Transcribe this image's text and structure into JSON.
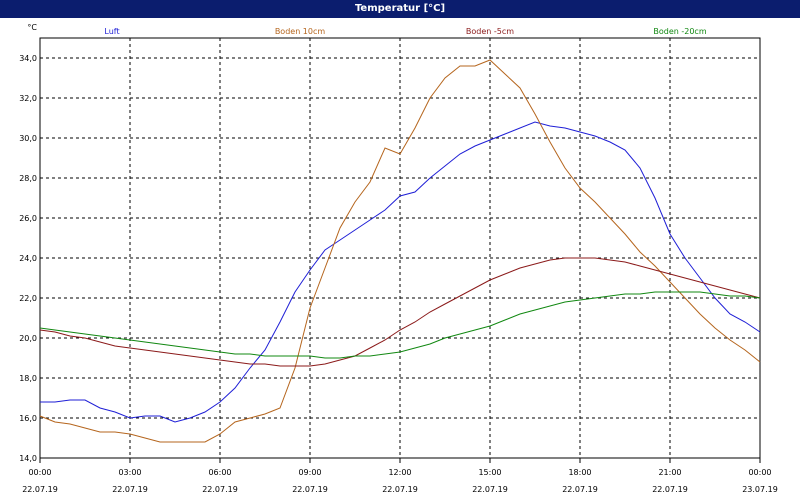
{
  "title": "Temperatur [°C]",
  "colors": {
    "title_bar": "#0b1d6e",
    "luft": "#1f1fd6",
    "boden_10": "#b5651d",
    "boden_minus5": "#8b1a1a",
    "boden_minus20": "#118811"
  },
  "chart_data": {
    "type": "line",
    "title": "Temperatur [°C]",
    "y_unit": "°C",
    "ylim": [
      14,
      35
    ],
    "y_ticks": [
      "14,0",
      "16,0",
      "18,0",
      "20,0",
      "22,0",
      "24,0",
      "26,0",
      "28,0",
      "30,0",
      "32,0",
      "34,0"
    ],
    "x_ticks": [
      {
        "time": "00:00",
        "date": "22.07.19"
      },
      {
        "time": "03:00",
        "date": "22.07.19"
      },
      {
        "time": "06:00",
        "date": "22.07.19"
      },
      {
        "time": "09:00",
        "date": "22.07.19"
      },
      {
        "time": "12:00",
        "date": "22.07.19"
      },
      {
        "time": "15:00",
        "date": "22.07.19"
      },
      {
        "time": "18:00",
        "date": "22.07.19"
      },
      {
        "time": "21:00",
        "date": "22.07.19"
      },
      {
        "time": "00:00",
        "date": "23.07.19"
      }
    ],
    "grid": true,
    "legend_placement": "top",
    "x_hours": [
      0,
      0.5,
      1,
      1.5,
      2,
      2.5,
      3,
      3.5,
      4,
      4.5,
      5,
      5.5,
      6,
      6.5,
      7,
      7.5,
      8,
      8.5,
      9,
      9.5,
      10,
      10.5,
      11,
      11.5,
      12,
      12.5,
      13,
      13.5,
      14,
      14.5,
      15,
      15.5,
      16,
      16.5,
      17,
      17.5,
      18,
      18.5,
      19,
      19.5,
      20,
      20.5,
      21,
      21.5,
      22,
      22.5,
      23,
      23.5,
      24
    ],
    "series": [
      {
        "name": "Luft",
        "color": "#1f1fd6",
        "values": [
          16.8,
          16.8,
          16.9,
          16.9,
          16.5,
          16.3,
          16.0,
          16.1,
          16.1,
          15.8,
          16.0,
          16.3,
          16.8,
          17.5,
          18.5,
          19.4,
          20.8,
          22.3,
          23.4,
          24.4,
          24.9,
          25.4,
          25.9,
          26.4,
          27.1,
          27.3,
          28.0,
          28.6,
          29.2,
          29.6,
          29.9,
          30.2,
          30.5,
          30.8,
          30.6,
          30.5,
          30.3,
          30.1,
          29.8,
          29.4,
          28.5,
          27.0,
          25.2,
          24.0,
          23.0,
          22.0,
          21.2,
          20.8,
          20.3
        ]
      },
      {
        "name": "Boden 10cm",
        "color": "#b5651d",
        "values": [
          16.1,
          15.8,
          15.7,
          15.5,
          15.3,
          15.3,
          15.2,
          15.0,
          14.8,
          14.8,
          14.8,
          14.8,
          15.2,
          15.8,
          16.0,
          16.2,
          16.5,
          18.5,
          21.5,
          23.5,
          25.5,
          26.8,
          27.8,
          29.5,
          29.2,
          30.5,
          32.0,
          33.0,
          33.6,
          33.6,
          33.9,
          33.2,
          32.5,
          31.2,
          29.8,
          28.5,
          27.5,
          26.8,
          26.0,
          25.2,
          24.3,
          23.6,
          22.8,
          22.0,
          21.2,
          20.5,
          19.9,
          19.4,
          18.8
        ]
      },
      {
        "name": "Boden -5cm",
        "color": "#8b1a1a",
        "values": [
          20.4,
          20.3,
          20.1,
          20.0,
          19.8,
          19.6,
          19.5,
          19.4,
          19.3,
          19.2,
          19.1,
          19.0,
          18.9,
          18.8,
          18.7,
          18.7,
          18.6,
          18.6,
          18.6,
          18.7,
          18.9,
          19.1,
          19.5,
          19.9,
          20.4,
          20.8,
          21.3,
          21.7,
          22.1,
          22.5,
          22.9,
          23.2,
          23.5,
          23.7,
          23.9,
          24.0,
          24.0,
          24.0,
          23.9,
          23.8,
          23.6,
          23.4,
          23.2,
          23.0,
          22.8,
          22.6,
          22.4,
          22.2,
          22.0
        ]
      },
      {
        "name": "Boden -20cm",
        "color": "#118811",
        "values": [
          20.5,
          20.4,
          20.3,
          20.2,
          20.1,
          20.0,
          19.9,
          19.8,
          19.7,
          19.6,
          19.5,
          19.4,
          19.3,
          19.2,
          19.2,
          19.1,
          19.1,
          19.1,
          19.1,
          19.0,
          19.0,
          19.1,
          19.1,
          19.2,
          19.3,
          19.5,
          19.7,
          20.0,
          20.2,
          20.4,
          20.6,
          20.9,
          21.2,
          21.4,
          21.6,
          21.8,
          21.9,
          22.0,
          22.1,
          22.2,
          22.2,
          22.3,
          22.3,
          22.3,
          22.3,
          22.2,
          22.1,
          22.1,
          22.0
        ]
      }
    ]
  }
}
